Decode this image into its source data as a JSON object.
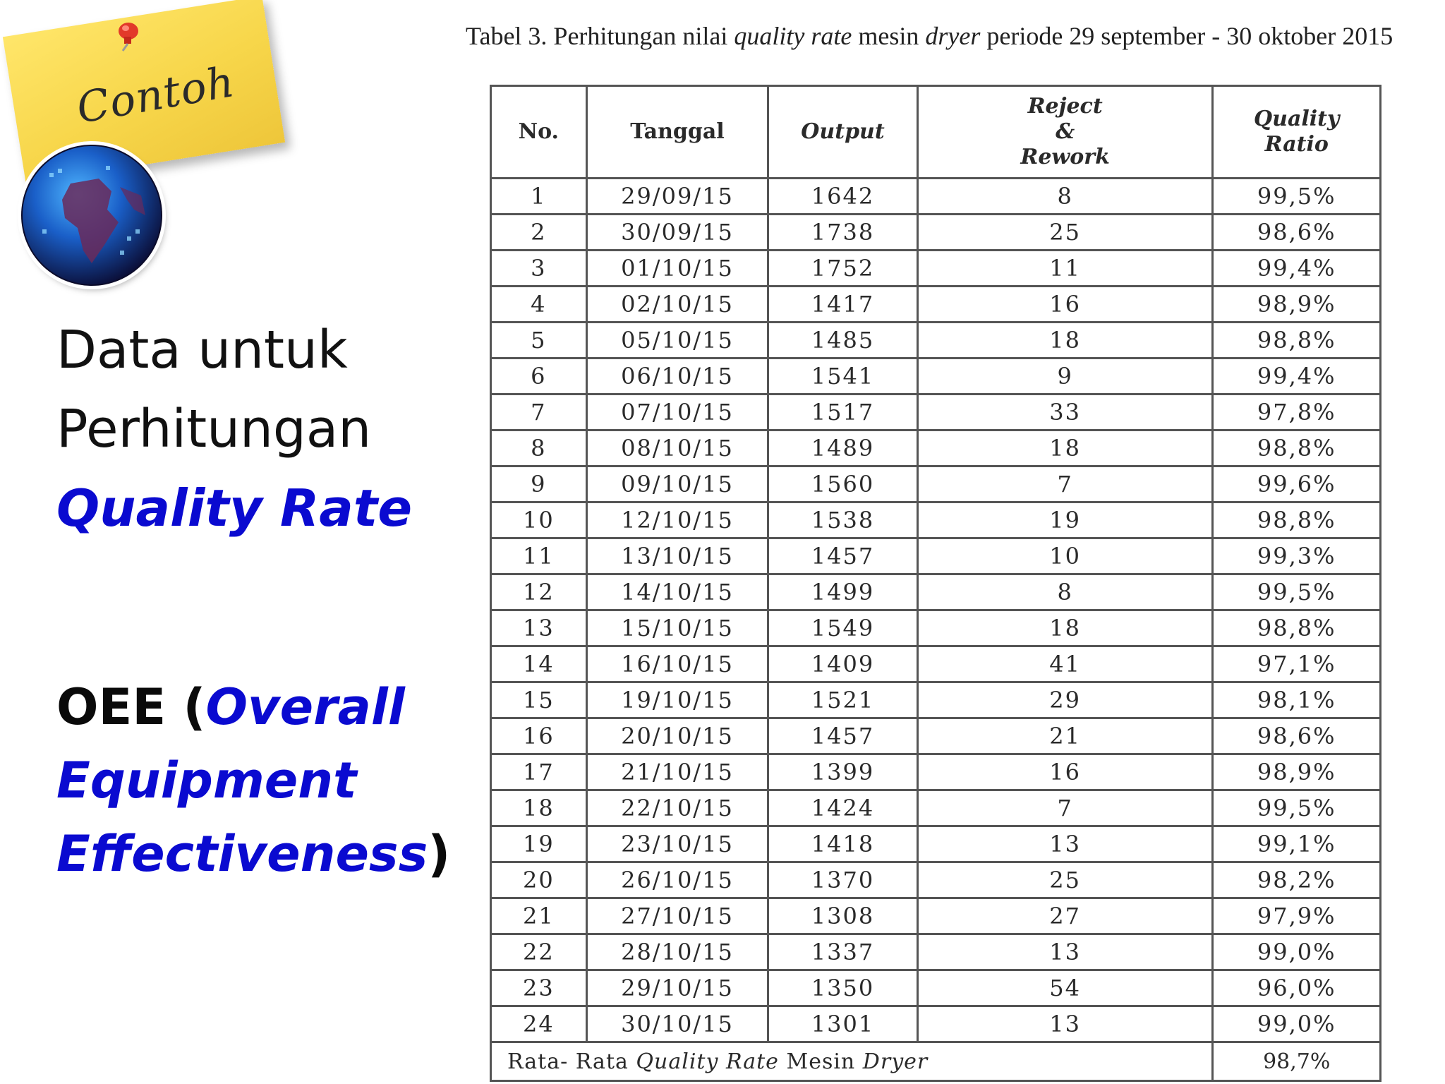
{
  "sticky_note": {
    "label": "Contoh"
  },
  "left": {
    "line1": "Data untuk",
    "line2": "Perhitungan",
    "highlight": "Quality Rate"
  },
  "oee": {
    "abbr": "OEE",
    "open_paren": " (",
    "word1": "Overall",
    "word2": "Equipment",
    "word3": "Effectiveness",
    "close_paren": ")"
  },
  "caption": {
    "prefix": "Tabel 3. Perhitungan nilai ",
    "italic1": "quality rate",
    "middle": " mesin ",
    "italic2": "dryer",
    "suffix": " periode 29 september - 30 oktober 2015"
  },
  "table": {
    "headers": {
      "no": "No.",
      "tanggal": "Tanggal",
      "output": "Output",
      "reject_1": "Reject",
      "reject_2": "&",
      "reject_3": "Rework",
      "quality_1": "Quality",
      "quality_2": "Ratio"
    },
    "rows": [
      [
        "1",
        "29/09/15",
        "1642",
        "8",
        "99,5%"
      ],
      [
        "2",
        "30/09/15",
        "1738",
        "25",
        "98,6%"
      ],
      [
        "3",
        "01/10/15",
        "1752",
        "11",
        "99,4%"
      ],
      [
        "4",
        "02/10/15",
        "1417",
        "16",
        "98,9%"
      ],
      [
        "5",
        "05/10/15",
        "1485",
        "18",
        "98,8%"
      ],
      [
        "6",
        "06/10/15",
        "1541",
        "9",
        "99,4%"
      ],
      [
        "7",
        "07/10/15",
        "1517",
        "33",
        "97,8%"
      ],
      [
        "8",
        "08/10/15",
        "1489",
        "18",
        "98,8%"
      ],
      [
        "9",
        "09/10/15",
        "1560",
        "7",
        "99,6%"
      ],
      [
        "10",
        "12/10/15",
        "1538",
        "19",
        "98,8%"
      ],
      [
        "11",
        "13/10/15",
        "1457",
        "10",
        "99,3%"
      ],
      [
        "12",
        "14/10/15",
        "1499",
        "8",
        "99,5%"
      ],
      [
        "13",
        "15/10/15",
        "1549",
        "18",
        "98,8%"
      ],
      [
        "14",
        "16/10/15",
        "1409",
        "41",
        "97,1%"
      ],
      [
        "15",
        "19/10/15",
        "1521",
        "29",
        "98,1%"
      ],
      [
        "16",
        "20/10/15",
        "1457",
        "21",
        "98,6%"
      ],
      [
        "17",
        "21/10/15",
        "1399",
        "16",
        "98,9%"
      ],
      [
        "18",
        "22/10/15",
        "1424",
        "7",
        "99,5%"
      ],
      [
        "19",
        "23/10/15",
        "1418",
        "13",
        "99,1%"
      ],
      [
        "20",
        "26/10/15",
        "1370",
        "25",
        "98,2%"
      ],
      [
        "21",
        "27/10/15",
        "1308",
        "27",
        "97,9%"
      ],
      [
        "22",
        "28/10/15",
        "1337",
        "13",
        "99,0%"
      ],
      [
        "23",
        "29/10/15",
        "1350",
        "54",
        "96,0%"
      ],
      [
        "24",
        "30/10/15",
        "1301",
        "13",
        "99,0%"
      ]
    ],
    "footer": {
      "label_prefix": "Rata- Rata ",
      "label_italic1": "Quality Rate",
      "label_middle": " Mesin ",
      "label_italic2": "Dryer",
      "value": "98,7%"
    }
  }
}
